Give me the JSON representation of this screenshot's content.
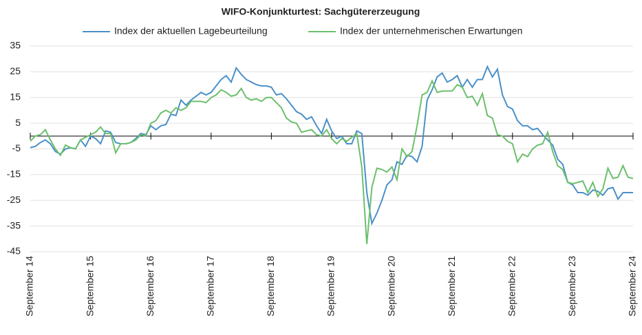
{
  "chart_data": {
    "type": "line",
    "title": "WIFO-Konjunkturtest: Sachgütererzeugung",
    "categories": [
      "September 14",
      null,
      null,
      null,
      null,
      null,
      null,
      null,
      null,
      null,
      null,
      null,
      "September 15",
      null,
      null,
      null,
      null,
      null,
      null,
      null,
      null,
      null,
      null,
      null,
      "September 16",
      null,
      null,
      null,
      null,
      null,
      null,
      null,
      null,
      null,
      null,
      null,
      "September 17",
      null,
      null,
      null,
      null,
      null,
      null,
      null,
      null,
      null,
      null,
      null,
      "September 18",
      null,
      null,
      null,
      null,
      null,
      null,
      null,
      null,
      null,
      null,
      null,
      "September 19",
      null,
      null,
      null,
      null,
      null,
      null,
      null,
      null,
      null,
      null,
      null,
      "September 20",
      null,
      null,
      null,
      null,
      null,
      null,
      null,
      null,
      null,
      null,
      null,
      "September 21",
      null,
      null,
      null,
      null,
      null,
      null,
      null,
      null,
      null,
      null,
      null,
      "September 22",
      null,
      null,
      null,
      null,
      null,
      null,
      null,
      null,
      null,
      null,
      null,
      "September 23",
      null,
      null,
      null,
      null,
      null,
      null,
      null,
      null,
      null,
      null,
      null,
      "September 24"
    ],
    "series": [
      {
        "name": "Index der aktuellen Lagebeurteilung",
        "color": "#4a90c8",
        "values": [
          -4.5,
          -4,
          -2.5,
          -1.5,
          -3,
          -6,
          -7,
          -5,
          -4.5,
          -5,
          -1.5,
          -4,
          0,
          -1,
          -3,
          2,
          1.5,
          -2.5,
          -3,
          -3,
          -2.5,
          -1,
          1,
          0.5,
          4,
          2.5,
          4,
          4.5,
          8.5,
          8,
          14,
          12,
          14,
          15.5,
          17,
          16,
          17,
          19.5,
          22,
          23.5,
          21,
          26.5,
          24,
          22,
          21,
          20,
          19.5,
          19.5,
          19,
          16,
          16.5,
          14.5,
          12,
          9.5,
          8.5,
          6.5,
          7.5,
          4,
          1,
          6.5,
          2,
          -1,
          0,
          -3,
          -3,
          2,
          1,
          -22,
          -34,
          -30,
          -25,
          -19,
          -17,
          -10,
          -11,
          -7.5,
          -8,
          -10,
          -4,
          14,
          18,
          23,
          24.5,
          21,
          22,
          23.5,
          19,
          22,
          19,
          22,
          22,
          27,
          23,
          26,
          16,
          11.5,
          10.5,
          6,
          4,
          4,
          2.5,
          3,
          0.5,
          -1.5,
          -3.5,
          -9,
          -11,
          -18,
          -19,
          -22,
          -22,
          -23,
          -21,
          -21.5,
          -23,
          -20.5,
          -20,
          -24.5,
          -22,
          -22,
          -22
        ]
      },
      {
        "name": "Index der unternehmerischen Erwartungen",
        "color": "#6cbf6c",
        "values": [
          -2,
          0,
          0.5,
          2.5,
          -1.5,
          -5,
          -7.5,
          -3.5,
          -4.5,
          -5,
          -1.5,
          -0.5,
          0.5,
          1.5,
          3.5,
          1,
          1,
          -6.5,
          -3,
          -3,
          -2.5,
          -1.5,
          0.5,
          0,
          5,
          6,
          9,
          10,
          9,
          11,
          10,
          11,
          13.5,
          13.5,
          13.5,
          13,
          15,
          16,
          18,
          17,
          15.5,
          16,
          18.5,
          15,
          14,
          14.5,
          13.5,
          15,
          15,
          13,
          11,
          7,
          5.5,
          5,
          1.5,
          2,
          2.5,
          0.5,
          0,
          2.5,
          -1,
          -3,
          -1,
          -2,
          -0.5,
          1,
          -12,
          -42,
          -20,
          -12.5,
          -13,
          -14,
          -12,
          -17,
          -5,
          -8,
          -6,
          4,
          16,
          17,
          21.5,
          17,
          17.5,
          17.5,
          17.5,
          20,
          19,
          15,
          15.5,
          12,
          16.5,
          8,
          7,
          0.5,
          0,
          -2,
          -3,
          -10,
          -7,
          -8,
          -5,
          -3.5,
          -3,
          1.5,
          -6,
          -11.5,
          -13,
          -18,
          -18.5,
          -18,
          -17.5,
          -22,
          -18,
          -23.5,
          -20.5,
          -12.5,
          -16.5,
          -16,
          -11.5,
          -16,
          -16.5
        ]
      }
    ],
    "ylim": [
      -45,
      35
    ],
    "yticks": [
      -45,
      -35,
      -25,
      -15,
      -5,
      5,
      15,
      25,
      35
    ],
    "grid": true,
    "legend": "top"
  }
}
